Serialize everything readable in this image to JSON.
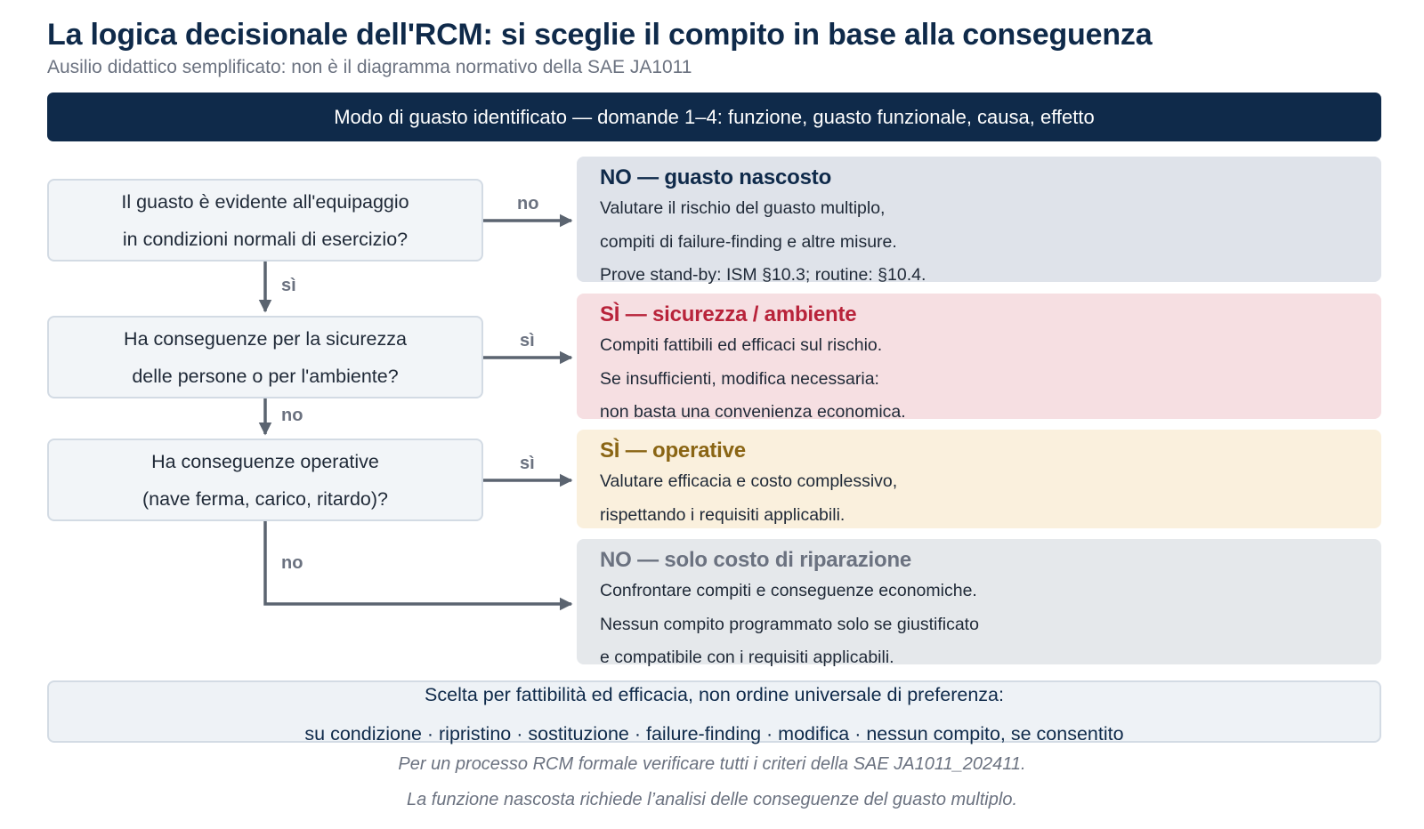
{
  "title": "La logica decisionale dell'RCM: si sceglie il compito in base alla conseguenza",
  "subtitle": "Ausilio didattico semplificato: non è il diagramma normativo della SAE JA1011",
  "banner": "Modo di guasto identificato — domande 1–4: funzione, guasto funzionale, causa, effetto",
  "questions": [
    {
      "line1": "Il guasto è evidente all'equipaggio",
      "line2": "in condizioni normali di esercizio?"
    },
    {
      "line1": "Ha conseguenze per la sicurezza",
      "line2": "delle persone o per l'ambiente?"
    },
    {
      "line1": "Ha conseguenze operative",
      "line2": "(nave ferma, carico, ritardo)?"
    }
  ],
  "edge_labels": {
    "q1_right": "no",
    "q1_down": "sì",
    "q2_right": "sì",
    "q2_down": "no",
    "q3_right": "sì",
    "q3_down": "no"
  },
  "outcomes": [
    {
      "heading": "NO — guasto nascosto",
      "color": "#0f2a4a",
      "lines": [
        "Valutare il rischio del guasto multiplo,",
        "compiti di failure-finding e altre misure.",
        "Prove stand-by: ISM §10.3; routine: §10.4."
      ]
    },
    {
      "heading": "SÌ — sicurezza / ambiente",
      "color": "#b8233a",
      "lines": [
        "Compiti fattibili ed efficaci sul rischio.",
        "Se insufficienti, modifica necessaria:",
        "non basta una convenienza economica."
      ]
    },
    {
      "heading": "SÌ — operative",
      "color": "#8a6514",
      "lines": [
        "Valutare efficacia e costo complessivo,",
        "rispettando i requisiti applicabili."
      ]
    },
    {
      "heading": "NO — solo costo di riparazione",
      "color": "#6b7280",
      "lines": [
        "Confrontare compiti e conseguenze economiche.",
        "Nessun compito programmato solo se giustificato",
        "e compatibile con i requisiti applicabili."
      ]
    }
  ],
  "note": {
    "line1": "Scelta per fattibilità ed efficacia, non ordine universale di preferenza:",
    "line2": "su condizione · ripristino · sostituzione · failure-finding · modifica · nessun compito, se consentito"
  },
  "footer": {
    "line1": "Per un processo RCM formale verificare tutti i criteri della SAE JA1011_202411.",
    "line2": "La funzione nascosta richiede l’analisi delle conseguenze del guasto multiplo."
  },
  "colors": {
    "navy": "#0f2a4a",
    "arrow": "#5b6470",
    "question_fill": "#f2f5f8",
    "hidden_fill": "#dfe3ea",
    "safety_fill": "#f6dfe2",
    "operational_fill": "#faf0dd",
    "repair_fill": "#e5e8eb"
  }
}
